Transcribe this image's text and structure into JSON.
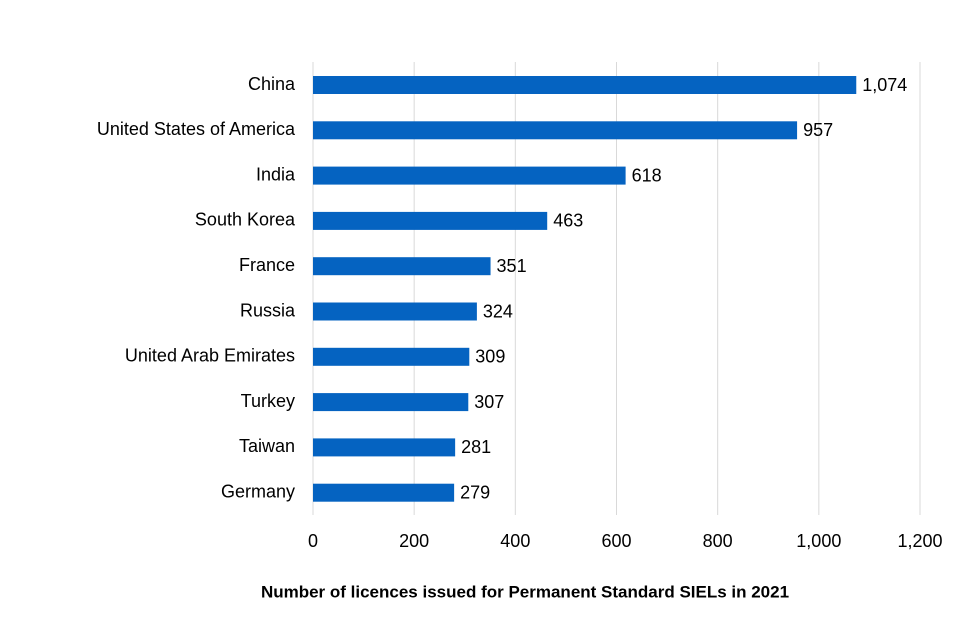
{
  "chart_data": {
    "type": "bar",
    "orientation": "horizontal",
    "xlabel": "Number of licences issued for Permanent Standard SIELs in 2021",
    "categories": [
      "China",
      "United States of America",
      "India",
      "South Korea",
      "France",
      "Russia",
      "United Arab Emirates",
      "Turkey",
      "Taiwan",
      "Germany"
    ],
    "values": [
      1074,
      957,
      618,
      463,
      351,
      324,
      309,
      307,
      281,
      279
    ],
    "value_labels": [
      "1,074",
      "957",
      "618",
      "463",
      "351",
      "324",
      "309",
      "307",
      "281",
      "279"
    ],
    "color": "#0563c1",
    "xlim": [
      0,
      1200
    ],
    "xticks": [
      0,
      200,
      400,
      600,
      800,
      {
        "value": 1000,
        "label": "1,000"
      },
      {
        "value": 1200,
        "label": "1,200"
      }
    ],
    "grid": true
  }
}
